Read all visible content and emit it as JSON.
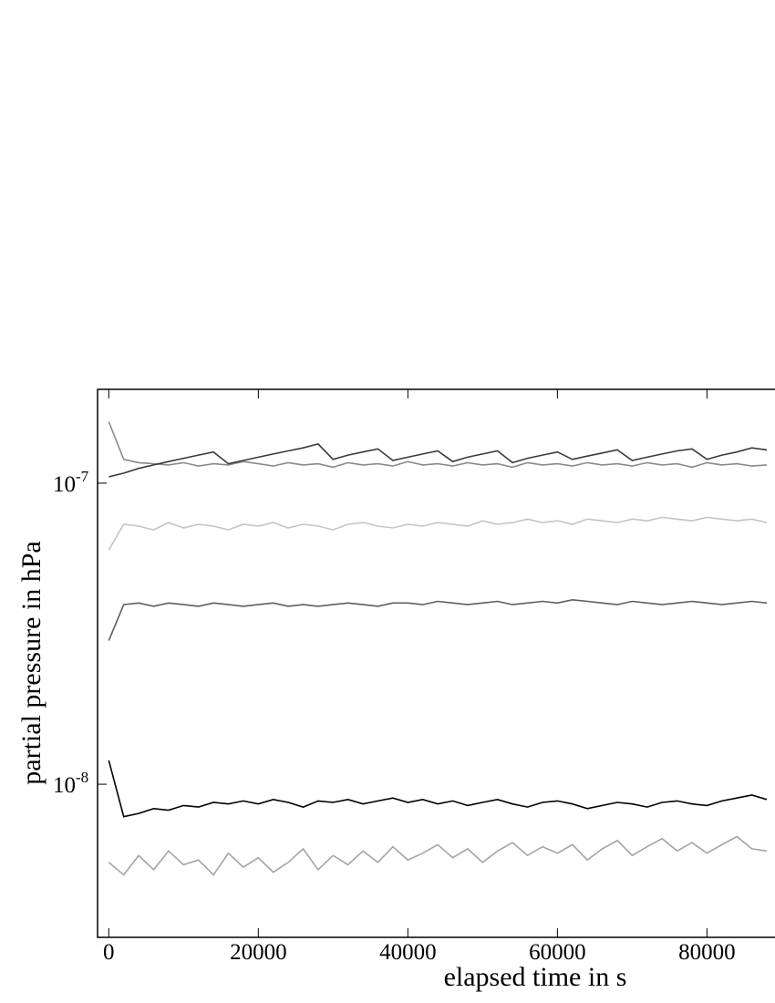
{
  "chart_data": {
    "type": "line",
    "xlabel": "elapsed time in s",
    "ylabel": "partial pressure in hPa",
    "x": [
      0,
      2000,
      4000,
      6000,
      8000,
      10000,
      12000,
      14000,
      16000,
      18000,
      20000,
      22000,
      24000,
      26000,
      28000,
      30000,
      32000,
      34000,
      36000,
      38000,
      40000,
      42000,
      44000,
      46000,
      48000,
      50000,
      52000,
      54000,
      56000,
      58000,
      60000,
      62000,
      64000,
      66000,
      68000,
      70000,
      72000,
      74000,
      76000,
      78000,
      80000,
      82000,
      84000,
      86000,
      88000
    ],
    "xlim": [
      -1500,
      89100
    ],
    "xticks": [
      0,
      20000,
      40000,
      60000,
      80000
    ],
    "ylim": [
      3.1e-09,
      2.05e-07
    ],
    "yticks": [
      {
        "value": 1e-08,
        "label": "10-8"
      },
      {
        "value": 1e-07,
        "label": "10-7"
      }
    ],
    "yscale": "log",
    "grid": false,
    "series": [
      {
        "color": "#a4a4a4",
        "values": [
          5.5e-09,
          5e-09,
          5.8e-09,
          5.2e-09,
          6e-09,
          5.4e-09,
          5.6e-09,
          5e-09,
          5.9e-09,
          5.3e-09,
          5.7e-09,
          5.1e-09,
          5.5e-09,
          6.1e-09,
          5.2e-09,
          5.8e-09,
          5.4e-09,
          6e-09,
          5.5e-09,
          6.2e-09,
          5.6e-09,
          5.9e-09,
          6.3e-09,
          5.7e-09,
          6.1e-09,
          5.5e-09,
          6e-09,
          6.4e-09,
          5.8e-09,
          6.2e-09,
          5.9e-09,
          6.3e-09,
          5.6e-09,
          6.1e-09,
          6.5e-09,
          5.8e-09,
          6.2e-09,
          6.6e-09,
          6e-09,
          6.4e-09,
          5.9e-09,
          6.3e-09,
          6.7e-09,
          6.1e-09,
          6e-09
        ]
      },
      {
        "color": "#c4c4c4",
        "values": [
          6e-08,
          7.3e-08,
          7.2e-08,
          7e-08,
          7.4e-08,
          7.1e-08,
          7.3e-08,
          7.2e-08,
          7e-08,
          7.3e-08,
          7.2e-08,
          7.4e-08,
          7.1e-08,
          7.3e-08,
          7.2e-08,
          7e-08,
          7.3e-08,
          7.4e-08,
          7.2e-08,
          7.1e-08,
          7.3e-08,
          7.2e-08,
          7.4e-08,
          7.3e-08,
          7.2e-08,
          7.5e-08,
          7.3e-08,
          7.4e-08,
          7.6e-08,
          7.4e-08,
          7.5e-08,
          7.3e-08,
          7.6e-08,
          7.5e-08,
          7.4e-08,
          7.6e-08,
          7.5e-08,
          7.7e-08,
          7.6e-08,
          7.5e-08,
          7.7e-08,
          7.6e-08,
          7.5e-08,
          7.6e-08,
          7.4e-08
        ]
      },
      {
        "color": "#8a8a8a",
        "values": [
          1.6e-07,
          1.2e-07,
          1.17e-07,
          1.16e-07,
          1.15e-07,
          1.17e-07,
          1.14e-07,
          1.16e-07,
          1.15e-07,
          1.18e-07,
          1.16e-07,
          1.14e-07,
          1.17e-07,
          1.15e-07,
          1.16e-07,
          1.13e-07,
          1.17e-07,
          1.15e-07,
          1.16e-07,
          1.14e-07,
          1.18e-07,
          1.15e-07,
          1.16e-07,
          1.14e-07,
          1.17e-07,
          1.15e-07,
          1.16e-07,
          1.13e-07,
          1.17e-07,
          1.15e-07,
          1.16e-07,
          1.14e-07,
          1.17e-07,
          1.15e-07,
          1.16e-07,
          1.14e-07,
          1.17e-07,
          1.15e-07,
          1.16e-07,
          1.13e-07,
          1.17e-07,
          1.15e-07,
          1.16e-07,
          1.14e-07,
          1.15e-07
        ]
      },
      {
        "color": "#5e5e5e",
        "values": [
          3e-08,
          3.95e-08,
          4e-08,
          3.9e-08,
          4e-08,
          3.95e-08,
          3.9e-08,
          4e-08,
          3.95e-08,
          3.9e-08,
          3.95e-08,
          4e-08,
          3.9e-08,
          3.95e-08,
          3.9e-08,
          3.95e-08,
          4e-08,
          3.95e-08,
          3.9e-08,
          4e-08,
          4e-08,
          3.95e-08,
          4.05e-08,
          4e-08,
          3.95e-08,
          4e-08,
          4.05e-08,
          3.95e-08,
          4e-08,
          4.05e-08,
          4e-08,
          4.1e-08,
          4.05e-08,
          4e-08,
          3.95e-08,
          4.05e-08,
          4e-08,
          3.95e-08,
          4e-08,
          4.05e-08,
          4e-08,
          3.95e-08,
          4e-08,
          4.05e-08,
          4e-08
        ]
      },
      {
        "color": "#3a3a3a",
        "values": [
          1.05e-07,
          1.08e-07,
          1.12e-07,
          1.15e-07,
          1.18e-07,
          1.21e-07,
          1.24e-07,
          1.27e-07,
          1.16e-07,
          1.19e-07,
          1.22e-07,
          1.25e-07,
          1.28e-07,
          1.31e-07,
          1.35e-07,
          1.2e-07,
          1.24e-07,
          1.27e-07,
          1.3e-07,
          1.19e-07,
          1.22e-07,
          1.25e-07,
          1.28e-07,
          1.18e-07,
          1.22e-07,
          1.25e-07,
          1.28e-07,
          1.17e-07,
          1.21e-07,
          1.24e-07,
          1.27e-07,
          1.2e-07,
          1.23e-07,
          1.26e-07,
          1.29e-07,
          1.19e-07,
          1.22e-07,
          1.25e-07,
          1.28e-07,
          1.3e-07,
          1.2e-07,
          1.24e-07,
          1.27e-07,
          1.31e-07,
          1.29e-07
        ]
      },
      {
        "color": "#000000",
        "values": [
          1.2e-08,
          7.8e-09,
          8e-09,
          8.3e-09,
          8.2e-09,
          8.5e-09,
          8.4e-09,
          8.7e-09,
          8.6e-09,
          8.8e-09,
          8.6e-09,
          8.9e-09,
          8.7e-09,
          8.4e-09,
          8.8e-09,
          8.7e-09,
          8.9e-09,
          8.6e-09,
          8.8e-09,
          9e-09,
          8.7e-09,
          8.9e-09,
          8.6e-09,
          8.8e-09,
          8.5e-09,
          8.7e-09,
          8.9e-09,
          8.6e-09,
          8.4e-09,
          8.7e-09,
          8.8e-09,
          8.6e-09,
          8.3e-09,
          8.5e-09,
          8.7e-09,
          8.6e-09,
          8.4e-09,
          8.7e-09,
          8.8e-09,
          8.6e-09,
          8.5e-09,
          8.8e-09,
          9e-09,
          9.2e-09,
          8.9e-09
        ]
      }
    ]
  }
}
